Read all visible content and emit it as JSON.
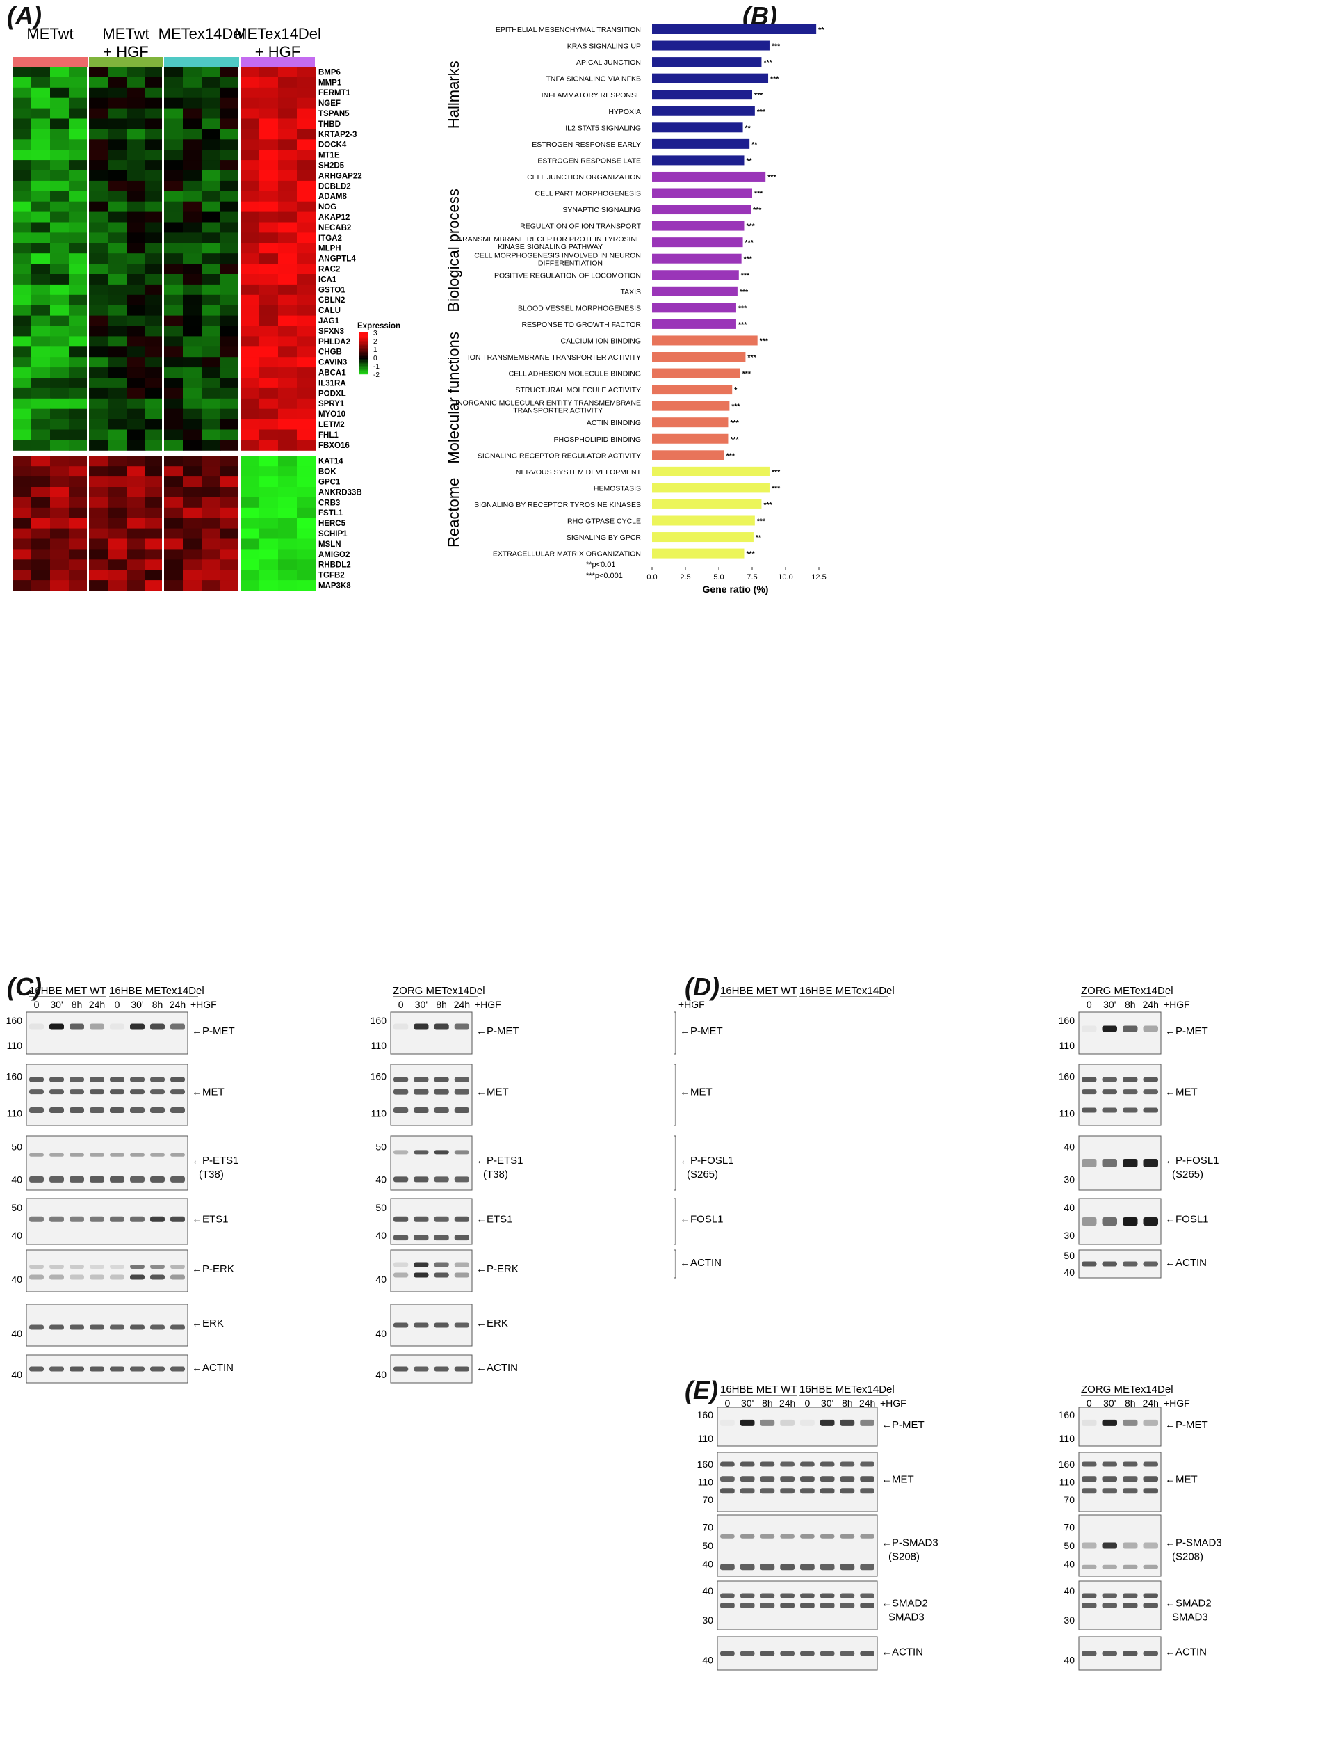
{
  "panels": {
    "A": "(A)",
    "B": "(B)",
    "C": "(C)",
    "D": "(D)",
    "E": "(E)"
  },
  "heatmap": {
    "group_labels": [
      {
        "line1": "METwt",
        "line2": ""
      },
      {
        "line1": "METwt",
        "line2": "+ HGF"
      },
      {
        "line1": "METex14Del",
        "line2": ""
      },
      {
        "line1": "METex14Del",
        "line2": "+ HGF"
      }
    ],
    "group_colors": [
      "#ec6a6a",
      "#80b43c",
      "#4fc9c4",
      "#c46cf0"
    ],
    "genes_up": [
      "BMP6",
      "MMP1",
      "FERMT1",
      "NGEF",
      "TSPAN5",
      "THBD",
      "KRTAP2-3",
      "DOCK4",
      "MT1E",
      "SH2D5",
      "ARHGAP22",
      "DCBLD2",
      "ADAM8",
      "NOG",
      "AKAP12",
      "NECAB2",
      "ITGA2",
      "MLPH",
      "ANGPTL4",
      "RAC2",
      "ICA1",
      "GSTO1",
      "CBLN2",
      "CALU",
      "JAG1",
      "SFXN3",
      "PHLDA2",
      "CHGB",
      "CAVIN3",
      "ABCA1",
      "IL31RA",
      "PODXL",
      "SPRY1",
      "MYO10",
      "LETM2",
      "FHL1",
      "FBXO16"
    ],
    "genes_down": [
      "KAT14",
      "BOK",
      "GPC1",
      "ANKRD33B",
      "CRB3",
      "FSTL1",
      "HERC5",
      "SCHIP1",
      "MSLN",
      "AMIGO2",
      "RHBDL2",
      "TGFB2",
      "MAP3K8"
    ],
    "legend": {
      "title": "Expression",
      "ticks": [
        "3",
        "2",
        "1",
        "0",
        "-1",
        "-2"
      ]
    }
  },
  "chart_data": {
    "type": "bar",
    "orientation": "horizontal",
    "xlabel": "Gene ratio (%)",
    "xlim": [
      0,
      12.5
    ],
    "xticks": [
      "0.0",
      "2.5",
      "5.0",
      "7.5",
      "10.0",
      "12.5"
    ],
    "groups": [
      {
        "name": "Hallmarks",
        "color": "#1d1f8f",
        "terms": [
          {
            "label": "EPITHELIAL MESENCHYMAL TRANSITION",
            "value": 12.3,
            "sig": "**"
          },
          {
            "label": "KRAS SIGNALING UP",
            "value": 8.8,
            "sig": "***"
          },
          {
            "label": "APICAL JUNCTION",
            "value": 8.2,
            "sig": "***"
          },
          {
            "label": "TNFA SIGNALING VIA NFKB",
            "value": 8.7,
            "sig": "***"
          },
          {
            "label": "INFLAMMATORY RESPONSE",
            "value": 7.5,
            "sig": "***"
          },
          {
            "label": "HYPOXIA",
            "value": 7.7,
            "sig": "***"
          },
          {
            "label": "IL2 STAT5 SIGNALING",
            "value": 6.8,
            "sig": "**"
          },
          {
            "label": "ESTROGEN RESPONSE EARLY",
            "value": 7.3,
            "sig": "**"
          },
          {
            "label": "ESTROGEN RESPONSE LATE",
            "value": 6.9,
            "sig": "**"
          }
        ]
      },
      {
        "name": "Biological process",
        "color": "#9a35b8",
        "terms": [
          {
            "label": "CELL JUNCTION ORGANIZATION",
            "value": 8.5,
            "sig": "***"
          },
          {
            "label": "CELL PART MORPHOGENESIS",
            "value": 7.5,
            "sig": "***"
          },
          {
            "label": "SYNAPTIC SIGNALING",
            "value": 7.4,
            "sig": "***"
          },
          {
            "label": "REGULATION OF ION TRANSPORT",
            "value": 6.9,
            "sig": "***"
          },
          {
            "label": "TRANSMEMBRANE RECEPTOR PROTEIN TYROSINE|KINASE SIGNALING PATHWAY",
            "value": 6.8,
            "sig": "***"
          },
          {
            "label": "CELL MORPHOGENESIS INVOLVED IN NEURON|DIFFERENTIATION",
            "value": 6.7,
            "sig": "***"
          },
          {
            "label": "POSITIVE REGULATION OF LOCOMOTION",
            "value": 6.5,
            "sig": "***"
          },
          {
            "label": "TAXIS",
            "value": 6.4,
            "sig": "***"
          },
          {
            "label": "BLOOD VESSEL MORPHOGENESIS",
            "value": 6.3,
            "sig": "***"
          },
          {
            "label": "RESPONSE TO GROWTH FACTOR",
            "value": 6.3,
            "sig": "***"
          }
        ]
      },
      {
        "name": "Molecular functions",
        "color": "#e8745a",
        "terms": [
          {
            "label": "CALCIUM ION BINDING",
            "value": 7.9,
            "sig": "***"
          },
          {
            "label": "ION TRANSMEMBRANE TRANSPORTER ACTIVITY",
            "value": 7.0,
            "sig": "***"
          },
          {
            "label": "CELL ADHESION MOLECULE BINDING",
            "value": 6.6,
            "sig": "***"
          },
          {
            "label": "STRUCTURAL MOLECULE ACTIVITY",
            "value": 6.0,
            "sig": "*"
          },
          {
            "label": "INORGANIC MOLECULAR ENTITY TRANSMEMBRANE|TRANSPORTER ACTIVITY",
            "value": 5.8,
            "sig": "***"
          },
          {
            "label": "ACTIN BINDING",
            "value": 5.7,
            "sig": "***"
          },
          {
            "label": "PHOSPHOLIPID BINDING",
            "value": 5.7,
            "sig": "***"
          },
          {
            "label": "SIGNALING RECEPTOR REGULATOR ACTIVITY",
            "value": 5.4,
            "sig": "***"
          }
        ]
      },
      {
        "name": "Reactome",
        "color": "#ecf55a",
        "terms": [
          {
            "label": "NERVOUS SYSTEM DEVELOPMENT",
            "value": 8.8,
            "sig": "***"
          },
          {
            "label": "HEMOSTASIS",
            "value": 8.8,
            "sig": "***"
          },
          {
            "label": "SIGNALING BY RECEPTOR TYROSINE KINASES",
            "value": 8.2,
            "sig": "***"
          },
          {
            "label": "RHO GTPASE CYCLE",
            "value": 7.7,
            "sig": "***"
          },
          {
            "label": "SIGNALING BY GPCR",
            "value": 7.6,
            "sig": "**"
          },
          {
            "label": "EXTRACELLULAR MATRIX ORGANIZATION",
            "value": 6.9,
            "sig": "***"
          }
        ]
      }
    ],
    "significance_legend": [
      "**p<0.01",
      "***p<0.001"
    ]
  },
  "westerns": {
    "hgf": "+HGF",
    "time_labels": [
      "0",
      "30'",
      "8h",
      "24h"
    ],
    "panelC": {
      "left_headers": [
        "16HBE MET WT",
        "16HBE METex14Del"
      ],
      "right_header": "ZORG METex14Del",
      "rows": [
        {
          "label": "P-MET",
          "sub": "",
          "mw": [
            "160",
            "110"
          ]
        },
        {
          "label": "MET",
          "sub": "",
          "mw": [
            "160",
            "110"
          ]
        },
        {
          "label": "P-ETS1",
          "sub": "(T38)",
          "mw": [
            "50",
            "40"
          ]
        },
        {
          "label": "ETS1",
          "sub": "",
          "mw": [
            "50",
            "40"
          ]
        },
        {
          "label": "P-ERK",
          "sub": "",
          "mw": [
            "40"
          ]
        },
        {
          "label": "ERK",
          "sub": "",
          "mw": [
            "40"
          ]
        },
        {
          "label": "ACTIN",
          "sub": "",
          "mw": [
            "40"
          ]
        }
      ]
    },
    "panelD": {
      "left_headers": [
        "16HBE MET WT",
        "16HBE METex14Del"
      ],
      "right_header": "ZORG METex14Del",
      "rows": [
        {
          "label": "P-MET",
          "sub": "",
          "mw": [
            "160",
            "110"
          ]
        },
        {
          "label": "MET",
          "sub": "",
          "mw": [
            "160",
            "110"
          ]
        },
        {
          "label": "P-FOSL1",
          "sub": "(S265)",
          "mw": [
            "40",
            "30"
          ]
        },
        {
          "label": "FOSL1",
          "sub": "",
          "mw": [
            "40",
            "30"
          ]
        },
        {
          "label": "ACTIN",
          "sub": "",
          "mw": [
            "50",
            "40"
          ]
        }
      ]
    },
    "panelE": {
      "left_headers": [
        "16HBE MET WT",
        "16HBE METex14Del"
      ],
      "right_header": "ZORG METex14Del",
      "rows": [
        {
          "label": "P-MET",
          "sub": "",
          "mw": [
            "160",
            "110"
          ]
        },
        {
          "label": "MET",
          "sub": "",
          "mw": [
            "160",
            "110",
            "70"
          ]
        },
        {
          "label": "P-SMAD3",
          "sub": "(S208)",
          "mw": [
            "70",
            "50",
            "40"
          ]
        },
        {
          "label": "SMAD2",
          "sub": "SMAD3",
          "mw": [
            "40",
            "30"
          ]
        },
        {
          "label": "ACTIN",
          "sub": "",
          "mw": [
            "40"
          ]
        }
      ]
    }
  }
}
